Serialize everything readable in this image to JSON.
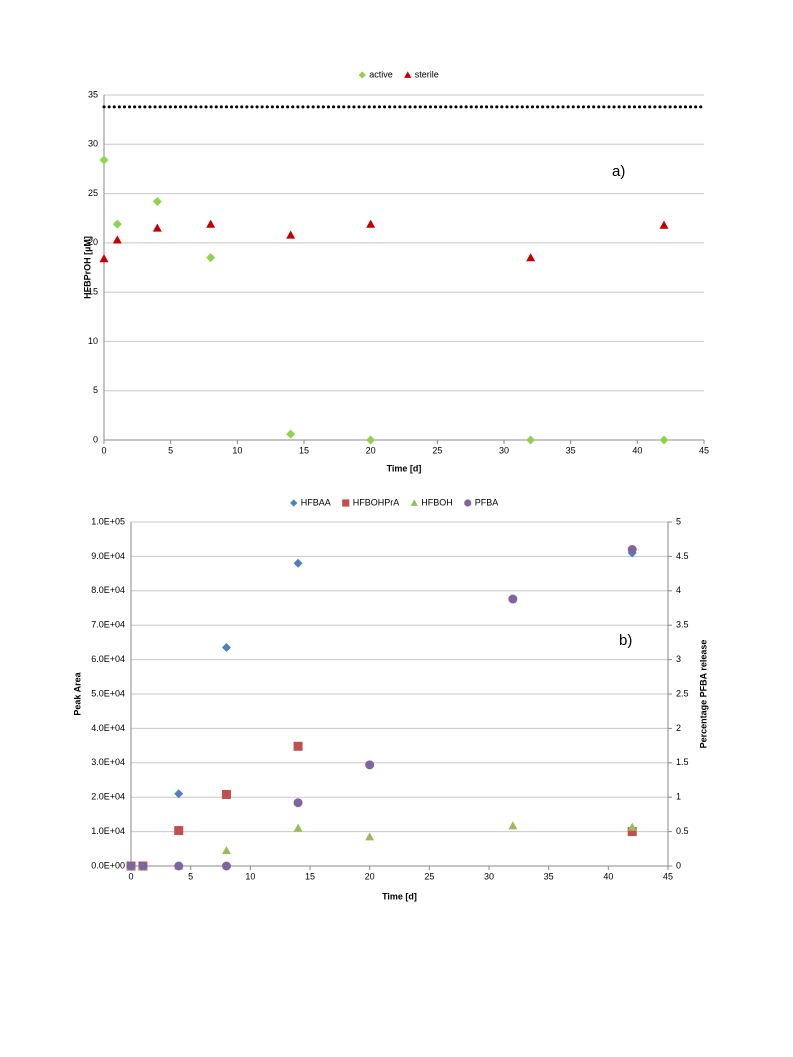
{
  "chart_data": [
    {
      "type": "scatter",
      "annotation": "a)",
      "xlabel": "Time [d]",
      "ylabel": "HFBPrOH [µM]",
      "xlim": [
        0,
        45
      ],
      "xticks": [
        0,
        5,
        10,
        15,
        20,
        25,
        30,
        35,
        40,
        45
      ],
      "ylim": [
        0,
        35
      ],
      "yticks": [
        0,
        5,
        10,
        15,
        20,
        25,
        30,
        35
      ],
      "grid": true,
      "hlines": [
        33.8
      ],
      "series": [
        {
          "name": "active",
          "color": "#92d050",
          "marker": "diamond",
          "x": [
            0,
            1,
            4,
            8,
            14,
            20,
            32,
            42
          ],
          "values": [
            28.4,
            21.9,
            24.2,
            18.5,
            0.6,
            0,
            0,
            0
          ]
        },
        {
          "name": "sterile",
          "color": "#c00000",
          "marker": "triangle",
          "x": [
            0,
            1,
            4,
            8,
            14,
            20,
            32,
            42
          ],
          "values": [
            18.4,
            20.3,
            21.5,
            21.9,
            20.8,
            21.9,
            18.5,
            21.8
          ]
        }
      ]
    },
    {
      "type": "scatter",
      "annotation": "b)",
      "xlabel": "Time [d]",
      "ylabel": "Peak Area",
      "y2label": "Percentage PFBA release",
      "xlim": [
        0,
        45
      ],
      "xticks": [
        0,
        5,
        10,
        15,
        20,
        25,
        30,
        35,
        40,
        45
      ],
      "ylim": [
        0,
        100000
      ],
      "yticks": [
        {
          "value": 0,
          "label": "0.0E+00"
        },
        {
          "value": 10000,
          "label": "1.0E+04"
        },
        {
          "value": 20000,
          "label": "2.0E+04"
        },
        {
          "value": 30000,
          "label": "3.0E+04"
        },
        {
          "value": 40000,
          "label": "4.0E+04"
        },
        {
          "value": 50000,
          "label": "5.0E+04"
        },
        {
          "value": 60000,
          "label": "6.0E+04"
        },
        {
          "value": 70000,
          "label": "7.0E+04"
        },
        {
          "value": 80000,
          "label": "8.0E+04"
        },
        {
          "value": 90000,
          "label": "9.0E+04"
        },
        {
          "value": 100000,
          "label": "1.0E+05"
        }
      ],
      "y2lim": [
        0,
        5
      ],
      "y2ticks": [
        0,
        0.5,
        1,
        1.5,
        2,
        2.5,
        3,
        3.5,
        4,
        4.5,
        5
      ],
      "grid": true,
      "series": [
        {
          "name": "HFBAA",
          "color": "#4f81bd",
          "marker": "diamond",
          "x": [
            0,
            1,
            4,
            8,
            14,
            42
          ],
          "values": [
            0,
            0,
            21000,
            63500,
            88000,
            91000
          ]
        },
        {
          "name": "HFBOHPrA",
          "color": "#c0504d",
          "marker": "square",
          "x": [
            0,
            1,
            4,
            8,
            14,
            42
          ],
          "values": [
            0,
            0,
            10300,
            20800,
            34800,
            10000
          ]
        },
        {
          "name": "HFBOH",
          "color": "#9bbb59",
          "marker": "triangle",
          "x": [
            0,
            1,
            4,
            8,
            14,
            20,
            32,
            42
          ],
          "values": [
            0,
            0,
            0,
            4500,
            11000,
            8500,
            11700,
            11300
          ]
        },
        {
          "name": "PFBA",
          "color": "#8064a2",
          "marker": "circle",
          "axis": "y2",
          "x": [
            0,
            1,
            4,
            8,
            14,
            20,
            32,
            42
          ],
          "values": [
            0,
            0,
            0,
            0,
            0.92,
            1.47,
            3.88,
            4.6
          ]
        }
      ]
    }
  ]
}
